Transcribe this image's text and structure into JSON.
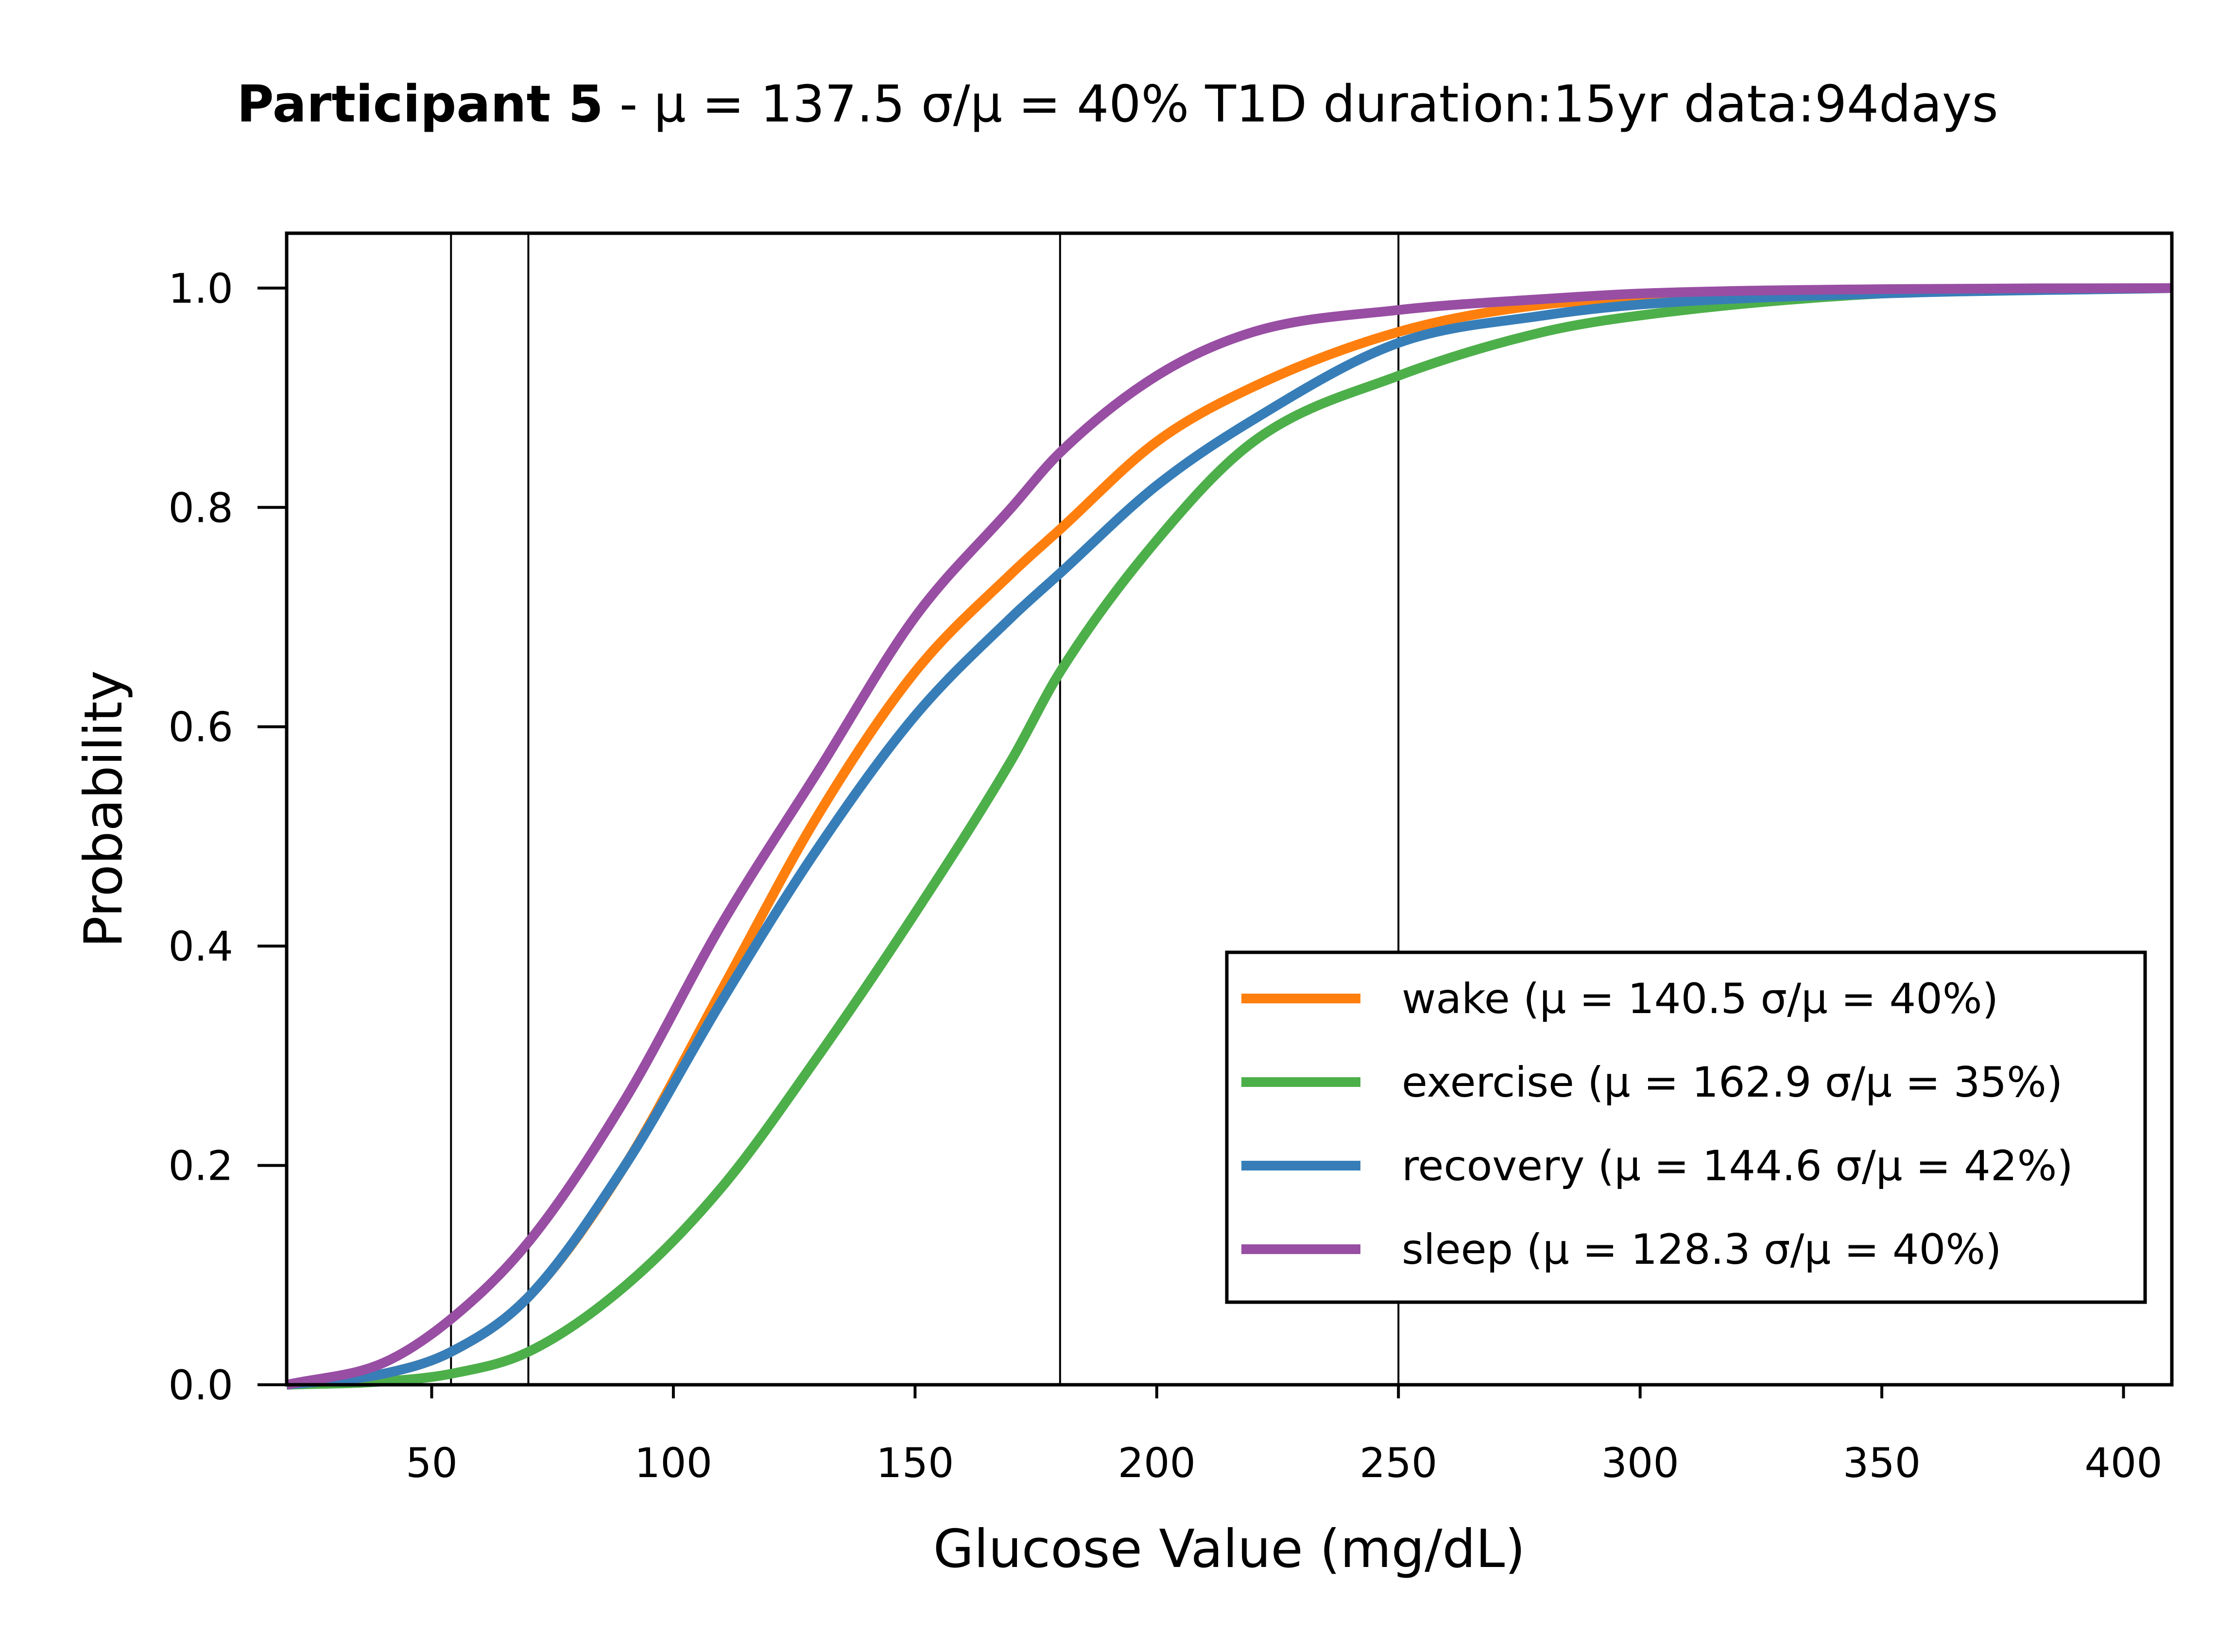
{
  "chart_data": {
    "type": "line",
    "title": {
      "bold": "Participant 5",
      "rest": " - μ = 137.5   σ/μ = 40%   T1D duration:15yr   data:94days"
    },
    "xlabel": "Glucose Value (mg/dL)",
    "ylabel": "Probability",
    "xlim": [
      20,
      410
    ],
    "ylim": [
      0,
      1.05
    ],
    "xticks": [
      50,
      100,
      150,
      200,
      250,
      300,
      350,
      400
    ],
    "yticks": [
      0.0,
      0.2,
      0.4,
      0.6,
      0.8,
      1.0
    ],
    "xtick_labels": [
      "50",
      "100",
      "150",
      "200",
      "250",
      "300",
      "350",
      "400"
    ],
    "ytick_labels": [
      "0.0",
      "0.2",
      "0.4",
      "0.6",
      "0.8",
      "1.0"
    ],
    "vlines": [
      54,
      70,
      180,
      250
    ],
    "grid": false,
    "legend_position": "lower-right",
    "series": [
      {
        "name": "wake (μ = 140.5 σ/μ = 40%)",
        "color": "#ff7f0e",
        "x": [
          20,
          40,
          54,
          70,
          90,
          110,
          130,
          150,
          170,
          180,
          200,
          220,
          250,
          280,
          300,
          350,
          410
        ],
        "y": [
          0.0,
          0.01,
          0.03,
          0.08,
          0.2,
          0.36,
          0.52,
          0.65,
          0.74,
          0.78,
          0.86,
          0.91,
          0.96,
          0.985,
          0.99,
          0.998,
          1.0
        ]
      },
      {
        "name": "exercise (μ = 162.9 σ/μ = 35%)",
        "color": "#4daf4a",
        "x": [
          20,
          40,
          54,
          70,
          90,
          110,
          130,
          150,
          170,
          180,
          200,
          220,
          250,
          280,
          300,
          350,
          410
        ],
        "y": [
          0.0,
          0.003,
          0.01,
          0.03,
          0.09,
          0.18,
          0.3,
          0.43,
          0.57,
          0.65,
          0.77,
          0.86,
          0.92,
          0.96,
          0.975,
          0.995,
          1.0
        ]
      },
      {
        "name": "recovery (μ = 144.6 σ/μ = 42%)",
        "color": "#377eb8",
        "x": [
          20,
          40,
          54,
          70,
          90,
          110,
          130,
          150,
          170,
          180,
          200,
          220,
          250,
          280,
          300,
          350,
          410
        ],
        "y": [
          0.0,
          0.01,
          0.03,
          0.08,
          0.2,
          0.35,
          0.49,
          0.61,
          0.7,
          0.74,
          0.82,
          0.88,
          0.95,
          0.975,
          0.985,
          0.995,
          1.0
        ]
      },
      {
        "name": "sleep (μ = 128.3 σ/μ = 40%)",
        "color": "#984ea3",
        "x": [
          20,
          40,
          54,
          70,
          90,
          110,
          130,
          150,
          170,
          180,
          200,
          220,
          250,
          280,
          300,
          350,
          410
        ],
        "y": [
          0.0,
          0.02,
          0.06,
          0.13,
          0.26,
          0.42,
          0.56,
          0.7,
          0.8,
          0.85,
          0.92,
          0.96,
          0.98,
          0.99,
          0.995,
          0.999,
          1.0
        ]
      }
    ]
  }
}
